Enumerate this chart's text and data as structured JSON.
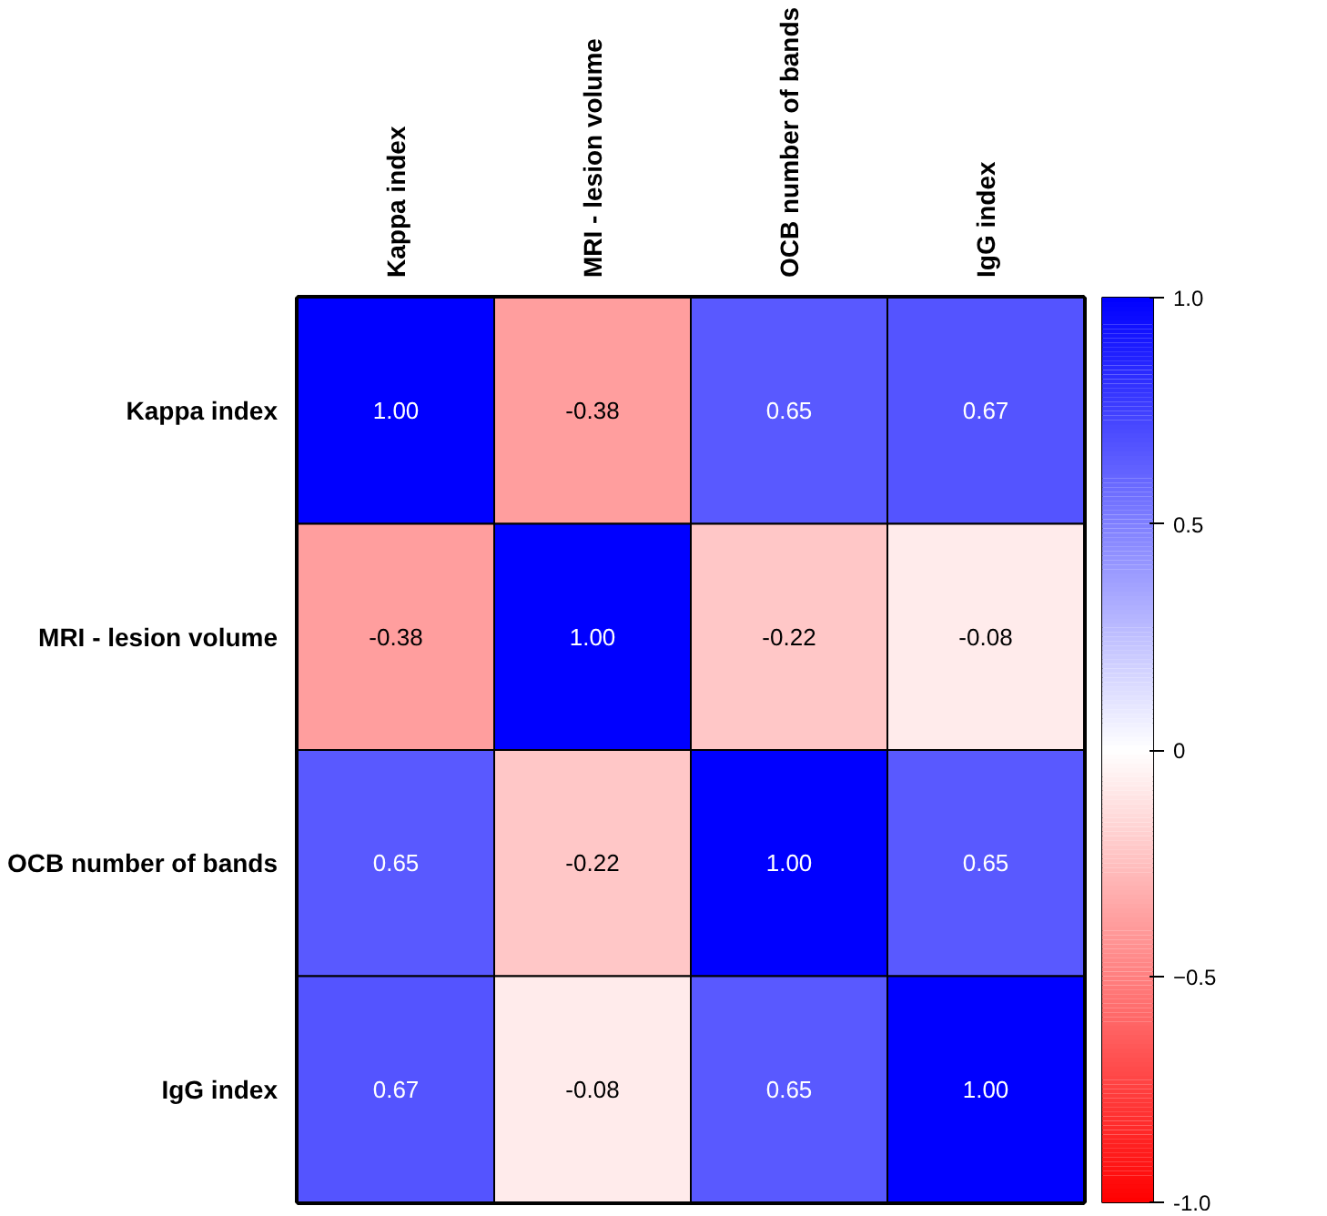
{
  "chart_data": {
    "type": "heatmap",
    "categories": [
      "Kappa index",
      "MRI - lesion volume",
      "OCB number of bands",
      "IgG index"
    ],
    "y_categories": [
      "Kappa index",
      "MRI - lesion volume",
      "OCB number of bands",
      "IgG index"
    ],
    "cells": [
      [
        1.0,
        -0.38,
        0.65,
        0.67
      ],
      [
        -0.38,
        1.0,
        -0.22,
        -0.08
      ],
      [
        0.65,
        -0.22,
        1.0,
        0.65
      ],
      [
        0.67,
        -0.08,
        0.65,
        1.0
      ]
    ],
    "cell_labels": [
      [
        "1.00",
        "-0.38",
        "0.65",
        "0.67"
      ],
      [
        "-0.38",
        "1.00",
        "-0.22",
        "-0.08"
      ],
      [
        "0.65",
        "-0.22",
        "1.00",
        "0.65"
      ],
      [
        "0.67",
        "-0.08",
        "0.65",
        "1.00"
      ]
    ],
    "clim": [
      -1,
      1
    ],
    "cticks": [
      {
        "value": 1,
        "label": "1.0"
      },
      0.5,
      0,
      -0.5,
      {
        "value": -1,
        "label": "-1.0"
      }
    ]
  }
}
